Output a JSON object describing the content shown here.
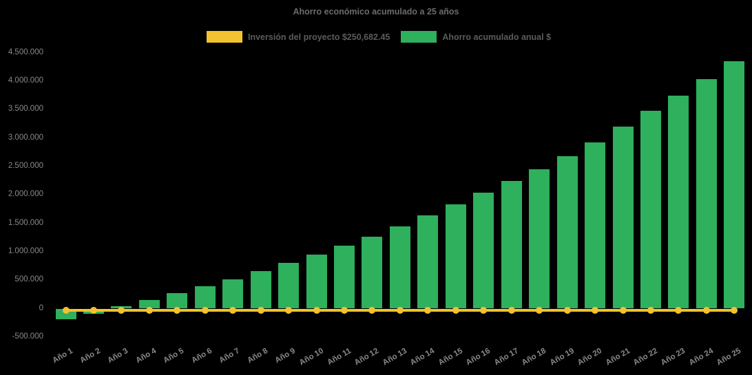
{
  "chart_data": {
    "type": "bar",
    "title": "Ahorro económico acumulado a 25 años",
    "categories": [
      "Año 1",
      "Año 2",
      "Año 3",
      "Año 4",
      "Año 5",
      "Año 6",
      "Año 7",
      "Año 8",
      "Año 9",
      "Año 10",
      "Año 11",
      "Año 12",
      "Año 13",
      "Año 14",
      "Año 15",
      "Año 16",
      "Año 17",
      "Año 18",
      "Año 19",
      "Año 20",
      "Año 21",
      "Año 22",
      "Año 23",
      "Año 24",
      "Año 25"
    ],
    "series": [
      {
        "name": "Ahorro acumulado anual $",
        "type": "bar",
        "color": "#2EB05C",
        "values": [
          -185000,
          -90000,
          40000,
          150000,
          270000,
          395000,
          515000,
          660000,
          800000,
          955000,
          1105000,
          1270000,
          1440000,
          1635000,
          1830000,
          2040000,
          2240000,
          2455000,
          2685000,
          2925000,
          3195000,
          3475000,
          3745000,
          4035000,
          4350000
        ]
      },
      {
        "name": "Inversión del proyecto $250,682.45",
        "type": "line",
        "color": "#F2C230",
        "marker": "circle",
        "plotted_level": 0,
        "values": [
          0,
          0,
          0,
          0,
          0,
          0,
          0,
          0,
          0,
          0,
          0,
          0,
          0,
          0,
          0,
          0,
          0,
          0,
          0,
          0,
          0,
          0,
          0,
          0,
          0
        ]
      }
    ],
    "xlabel": "",
    "ylabel": "",
    "ylim": [
      -500000,
      4500000
    ],
    "y_tick_step": 500000,
    "y_tick_labels": [
      "4.500.000",
      "4.000.000",
      "3.500.000",
      "3.000.000",
      "2.500.000",
      "2.000.000",
      "1.500.000",
      "1.000.000",
      "500.000",
      "0",
      "-500.000"
    ],
    "grid": "off",
    "legend_position": "top"
  },
  "legend": [
    {
      "label": "Inversión del proyecto $250,682.45",
      "color": "#F2C230"
    },
    {
      "label": "Ahorro acumulado anual $",
      "color": "#2EB05C"
    }
  ],
  "colors": {
    "background": "#000000",
    "bar": "#2EB05C",
    "investment_line": "#F2C230",
    "title_text": "#6A6B6D",
    "legend_text": "#5A5B5D",
    "axis_text": "#87898A"
  }
}
